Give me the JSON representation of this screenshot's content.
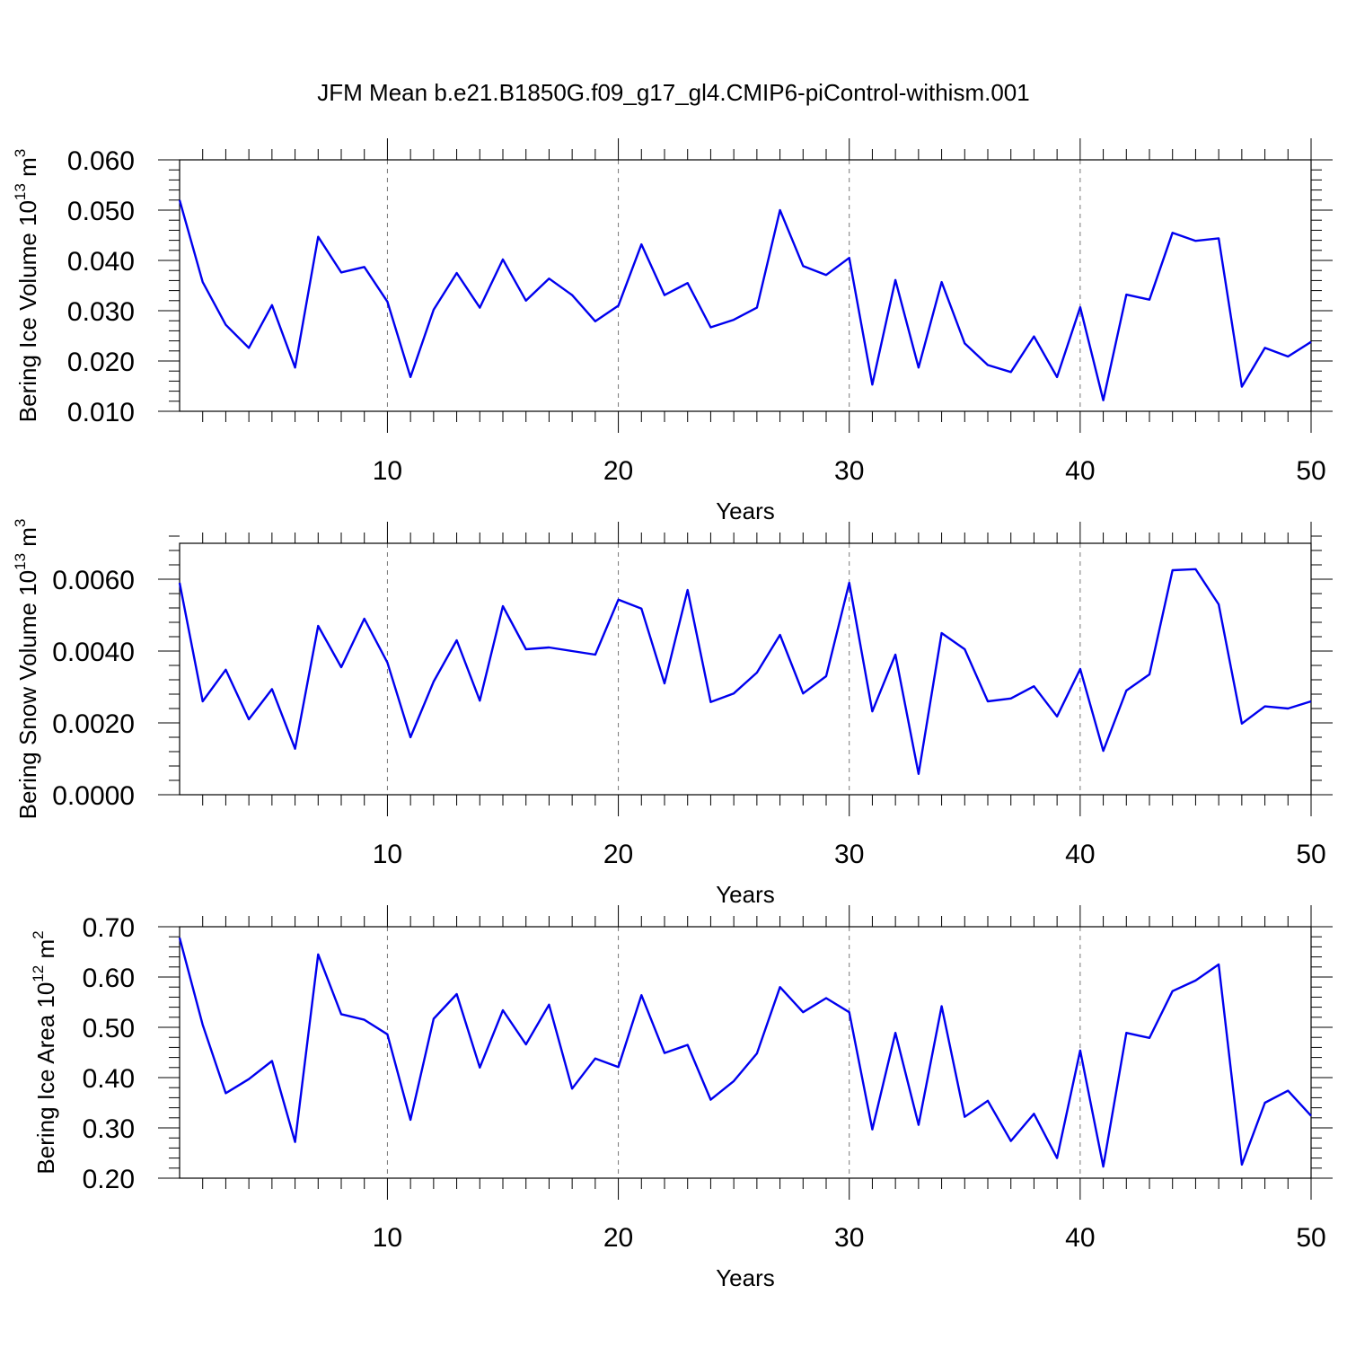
{
  "title": "JFM Mean b.e21.B1850G.f09_g17_gl4.CMIP6-piControl-withism.001",
  "line_color": "#0000ee",
  "grid_color": "#777777",
  "chart_data": [
    {
      "type": "line",
      "ylabel_main": "Bering Ice Volume 10",
      "ylabel_exp": "13",
      "ylabel_unit": " m",
      "ylabel_unit_exp": "3",
      "xlabel": "Years",
      "xlim": [
        1,
        50
      ],
      "ylim": [
        0.01,
        0.06
      ],
      "x_ticks": [
        10,
        20,
        30,
        40,
        50
      ],
      "y_ticks": [
        0.01,
        0.02,
        0.03,
        0.04,
        0.05,
        0.06
      ],
      "y_tick_labels": [
        "0.010",
        "0.020",
        "0.030",
        "0.040",
        "0.050",
        "0.060"
      ],
      "y_minor_step": 0.002,
      "grid": "vertical dashed at major x ticks",
      "x": [
        1,
        2,
        3,
        4,
        5,
        6,
        7,
        8,
        9,
        10,
        11,
        12,
        13,
        14,
        15,
        16,
        17,
        18,
        19,
        20,
        21,
        22,
        23,
        24,
        25,
        26,
        27,
        28,
        29,
        30,
        31,
        32,
        33,
        34,
        35,
        36,
        37,
        38,
        39,
        40,
        41,
        42,
        43,
        44,
        45,
        46,
        47,
        48,
        49,
        50
      ],
      "values": [
        0.052,
        0.0357,
        0.0272,
        0.0226,
        0.0311,
        0.0187,
        0.0447,
        0.0376,
        0.0387,
        0.0318,
        0.0168,
        0.0302,
        0.0375,
        0.0306,
        0.0402,
        0.032,
        0.0364,
        0.0331,
        0.0279,
        0.031,
        0.0432,
        0.0331,
        0.0355,
        0.0267,
        0.0282,
        0.0306,
        0.05,
        0.0389,
        0.0371,
        0.0405,
        0.0153,
        0.0361,
        0.0187,
        0.0357,
        0.0235,
        0.0192,
        0.0178,
        0.0249,
        0.0168,
        0.0307,
        0.0122,
        0.0332,
        0.0322,
        0.0455,
        0.0439,
        0.0444,
        0.0149,
        0.0226,
        0.0209,
        0.0238
      ]
    },
    {
      "type": "line",
      "ylabel_main": "Bering Snow Volume 10",
      "ylabel_exp": "13",
      "ylabel_unit": " m",
      "ylabel_unit_exp": "3",
      "xlabel": "Years",
      "xlim": [
        1,
        50
      ],
      "ylim": [
        0.0,
        0.007
      ],
      "x_ticks": [
        10,
        20,
        30,
        40,
        50
      ],
      "y_ticks": [
        0.0,
        0.002,
        0.004,
        0.006
      ],
      "y_tick_labels": [
        "0.0000",
        "0.0020",
        "0.0040",
        "0.0060"
      ],
      "y_minor_step": 0.0004,
      "grid": "vertical dashed at major x ticks",
      "x": [
        1,
        2,
        3,
        4,
        5,
        6,
        7,
        8,
        9,
        10,
        11,
        12,
        13,
        14,
        15,
        16,
        17,
        18,
        19,
        20,
        21,
        22,
        23,
        24,
        25,
        26,
        27,
        28,
        29,
        30,
        31,
        32,
        33,
        34,
        35,
        36,
        37,
        38,
        39,
        40,
        41,
        42,
        43,
        44,
        45,
        46,
        47,
        48,
        49,
        50
      ],
      "values": [
        0.0059,
        0.0026,
        0.00348,
        0.0021,
        0.00294,
        0.00128,
        0.0047,
        0.00355,
        0.0049,
        0.00368,
        0.0016,
        0.00315,
        0.0043,
        0.00262,
        0.00525,
        0.00405,
        0.0041,
        0.004,
        0.0039,
        0.00543,
        0.00518,
        0.0031,
        0.0057,
        0.00258,
        0.00282,
        0.0034,
        0.00445,
        0.00282,
        0.0033,
        0.0059,
        0.00232,
        0.0039,
        0.00058,
        0.0045,
        0.00405,
        0.0026,
        0.00268,
        0.00302,
        0.00218,
        0.0035,
        0.00122,
        0.0029,
        0.00335,
        0.00625,
        0.00628,
        0.0053,
        0.00198,
        0.00246,
        0.0024,
        0.0026
      ]
    },
    {
      "type": "line",
      "ylabel_main": "Bering Ice Area 10",
      "ylabel_exp": "12",
      "ylabel_unit": " m",
      "ylabel_unit_exp": "2",
      "xlabel": "Years",
      "xlim": [
        1,
        50
      ],
      "ylim": [
        0.2,
        0.7
      ],
      "x_ticks": [
        10,
        20,
        30,
        40,
        50
      ],
      "y_ticks": [
        0.2,
        0.3,
        0.4,
        0.5,
        0.6,
        0.7
      ],
      "y_tick_labels": [
        "0.20",
        "0.30",
        "0.40",
        "0.50",
        "0.60",
        "0.70"
      ],
      "y_minor_step": 0.02,
      "grid": "vertical dashed at major x ticks",
      "x": [
        1,
        2,
        3,
        4,
        5,
        6,
        7,
        8,
        9,
        10,
        11,
        12,
        13,
        14,
        15,
        16,
        17,
        18,
        19,
        20,
        21,
        22,
        23,
        24,
        25,
        26,
        27,
        28,
        29,
        30,
        31,
        32,
        33,
        34,
        35,
        36,
        37,
        38,
        39,
        40,
        41,
        42,
        43,
        44,
        45,
        46,
        47,
        48,
        49,
        50
      ],
      "values": [
        0.678,
        0.505,
        0.369,
        0.397,
        0.433,
        0.272,
        0.645,
        0.526,
        0.515,
        0.486,
        0.316,
        0.517,
        0.566,
        0.42,
        0.534,
        0.466,
        0.545,
        0.378,
        0.438,
        0.421,
        0.564,
        0.449,
        0.465,
        0.356,
        0.393,
        0.448,
        0.58,
        0.53,
        0.558,
        0.53,
        0.297,
        0.489,
        0.306,
        0.542,
        0.322,
        0.354,
        0.274,
        0.328,
        0.24,
        0.454,
        0.223,
        0.489,
        0.479,
        0.572,
        0.593,
        0.625,
        0.227,
        0.35,
        0.374,
        0.324
      ]
    }
  ]
}
